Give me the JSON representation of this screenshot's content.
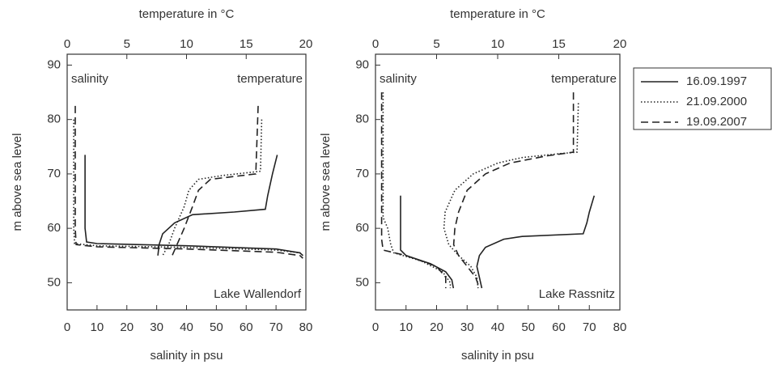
{
  "chart_data": [
    {
      "type": "line",
      "annotations": [
        "salinity",
        "temperature",
        "Lake Wallendorf"
      ],
      "xlabel": "salinity in psu",
      "x2label": "temperature in °C",
      "ylabel": "m above sea level",
      "xlim": [
        0,
        80
      ],
      "xticks": [
        0,
        10,
        20,
        30,
        40,
        50,
        60,
        70,
        80
      ],
      "x2lim": [
        0,
        20
      ],
      "x2ticks": [
        0,
        5,
        10,
        15,
        20
      ],
      "ylim": [
        45,
        92
      ],
      "yticks": [
        50,
        60,
        70,
        80,
        90
      ],
      "series": [
        {
          "dash": "solid",
          "axis": "x",
          "x": [
            6,
            6,
            6.5,
            10,
            40,
            70,
            78,
            79
          ],
          "y": [
            73.5,
            60,
            57.5,
            57.2,
            56.8,
            56.2,
            55.5,
            55
          ]
        },
        {
          "dash": "dotted",
          "axis": "x",
          "x": [
            2.2,
            2.2,
            2.5,
            10,
            40,
            70,
            78,
            79
          ],
          "y": [
            80,
            60,
            57.2,
            56.8,
            56.5,
            56,
            55.5,
            55
          ]
        },
        {
          "dash": "dashed",
          "axis": "x",
          "x": [
            2.7,
            2.7,
            3,
            10,
            40,
            70,
            78,
            79
          ],
          "y": [
            82.5,
            60,
            57,
            56.6,
            56.2,
            55.6,
            55,
            54.5
          ]
        },
        {
          "dash": "solid",
          "axis": "x2",
          "x": [
            17.6,
            17.2,
            16.8,
            16.6,
            14,
            10.5,
            9,
            8,
            7.7,
            7.6
          ],
          "y": [
            73.5,
            70,
            66,
            63.5,
            63,
            62.5,
            61,
            59,
            57,
            55
          ]
        },
        {
          "dash": "dotted",
          "axis": "x2",
          "x": [
            16.3,
            16.2,
            13,
            11,
            10.2,
            9.8,
            9,
            8.5,
            8
          ],
          "y": [
            80,
            70.5,
            69.7,
            69,
            67,
            64,
            60,
            57,
            55
          ]
        },
        {
          "dash": "dashed",
          "axis": "x2",
          "x": [
            16,
            15.8,
            12,
            11,
            10.5,
            9.8,
            9.2,
            8.8
          ],
          "y": [
            82.5,
            70,
            69,
            67,
            64,
            60,
            57,
            55
          ]
        }
      ]
    },
    {
      "type": "line",
      "annotations": [
        "salinity",
        "temperature",
        "Lake Rassnitz"
      ],
      "xlabel": "salinity in psu",
      "x2label": "temperature in °C",
      "ylabel": "m above sea level",
      "xlim": [
        0,
        80
      ],
      "xticks": [
        0,
        10,
        20,
        30,
        40,
        50,
        60,
        70,
        80
      ],
      "x2lim": [
        0,
        20
      ],
      "x2ticks": [
        0,
        5,
        10,
        15,
        20
      ],
      "ylim": [
        45,
        92
      ],
      "yticks": [
        50,
        60,
        70,
        80,
        90
      ],
      "series": [
        {
          "dash": "solid",
          "axis": "x",
          "x": [
            8.2,
            8.2,
            10,
            18,
            23,
            25,
            25.5
          ],
          "y": [
            66,
            56,
            55,
            53.5,
            52,
            50.5,
            49
          ]
        },
        {
          "dash": "dotted",
          "axis": "x",
          "x": [
            2.5,
            2.5,
            4,
            5,
            6,
            15,
            22,
            24.5,
            24.5
          ],
          "y": [
            85,
            62,
            60,
            57,
            55.5,
            54,
            52,
            50,
            49
          ]
        },
        {
          "dash": "dashed",
          "axis": "x",
          "x": [
            2,
            2,
            2.5,
            10,
            20,
            23,
            23
          ],
          "y": [
            85,
            58,
            56,
            55,
            53,
            51,
            49
          ]
        },
        {
          "dash": "solid",
          "axis": "x2",
          "x": [
            17.9,
            17.5,
            17.3,
            17,
            12,
            10.5,
            9,
            8.5,
            8.3,
            8.5,
            8.7
          ],
          "y": [
            66,
            63,
            61,
            59,
            58.5,
            58,
            56.5,
            55,
            53,
            51,
            49
          ]
        },
        {
          "dash": "dotted",
          "axis": "x2",
          "x": [
            16.6,
            16.5,
            15,
            12,
            10,
            8,
            6.5,
            5.7,
            5.6,
            6,
            6.8,
            7.8,
            8.3,
            8.4
          ],
          "y": [
            83,
            74,
            73.7,
            73,
            72,
            70,
            67,
            63,
            60,
            57,
            55,
            53,
            51,
            49
          ]
        },
        {
          "dash": "dashed",
          "axis": "x2",
          "x": [
            16.2,
            16.2,
            14,
            11,
            9,
            7.5,
            6.8,
            6.5,
            6.4,
            6.8,
            7.5,
            8.2,
            8.5
          ],
          "y": [
            85,
            74,
            73.3,
            72,
            70,
            67,
            63,
            60,
            57,
            55,
            53,
            51,
            49
          ]
        }
      ]
    }
  ],
  "legend": {
    "items": [
      {
        "name": "16.09.1997",
        "dash": "solid"
      },
      {
        "name": "21.09.2000",
        "dash": "dotted"
      },
      {
        "name": "19.09.2007",
        "dash": "dashed"
      }
    ]
  }
}
